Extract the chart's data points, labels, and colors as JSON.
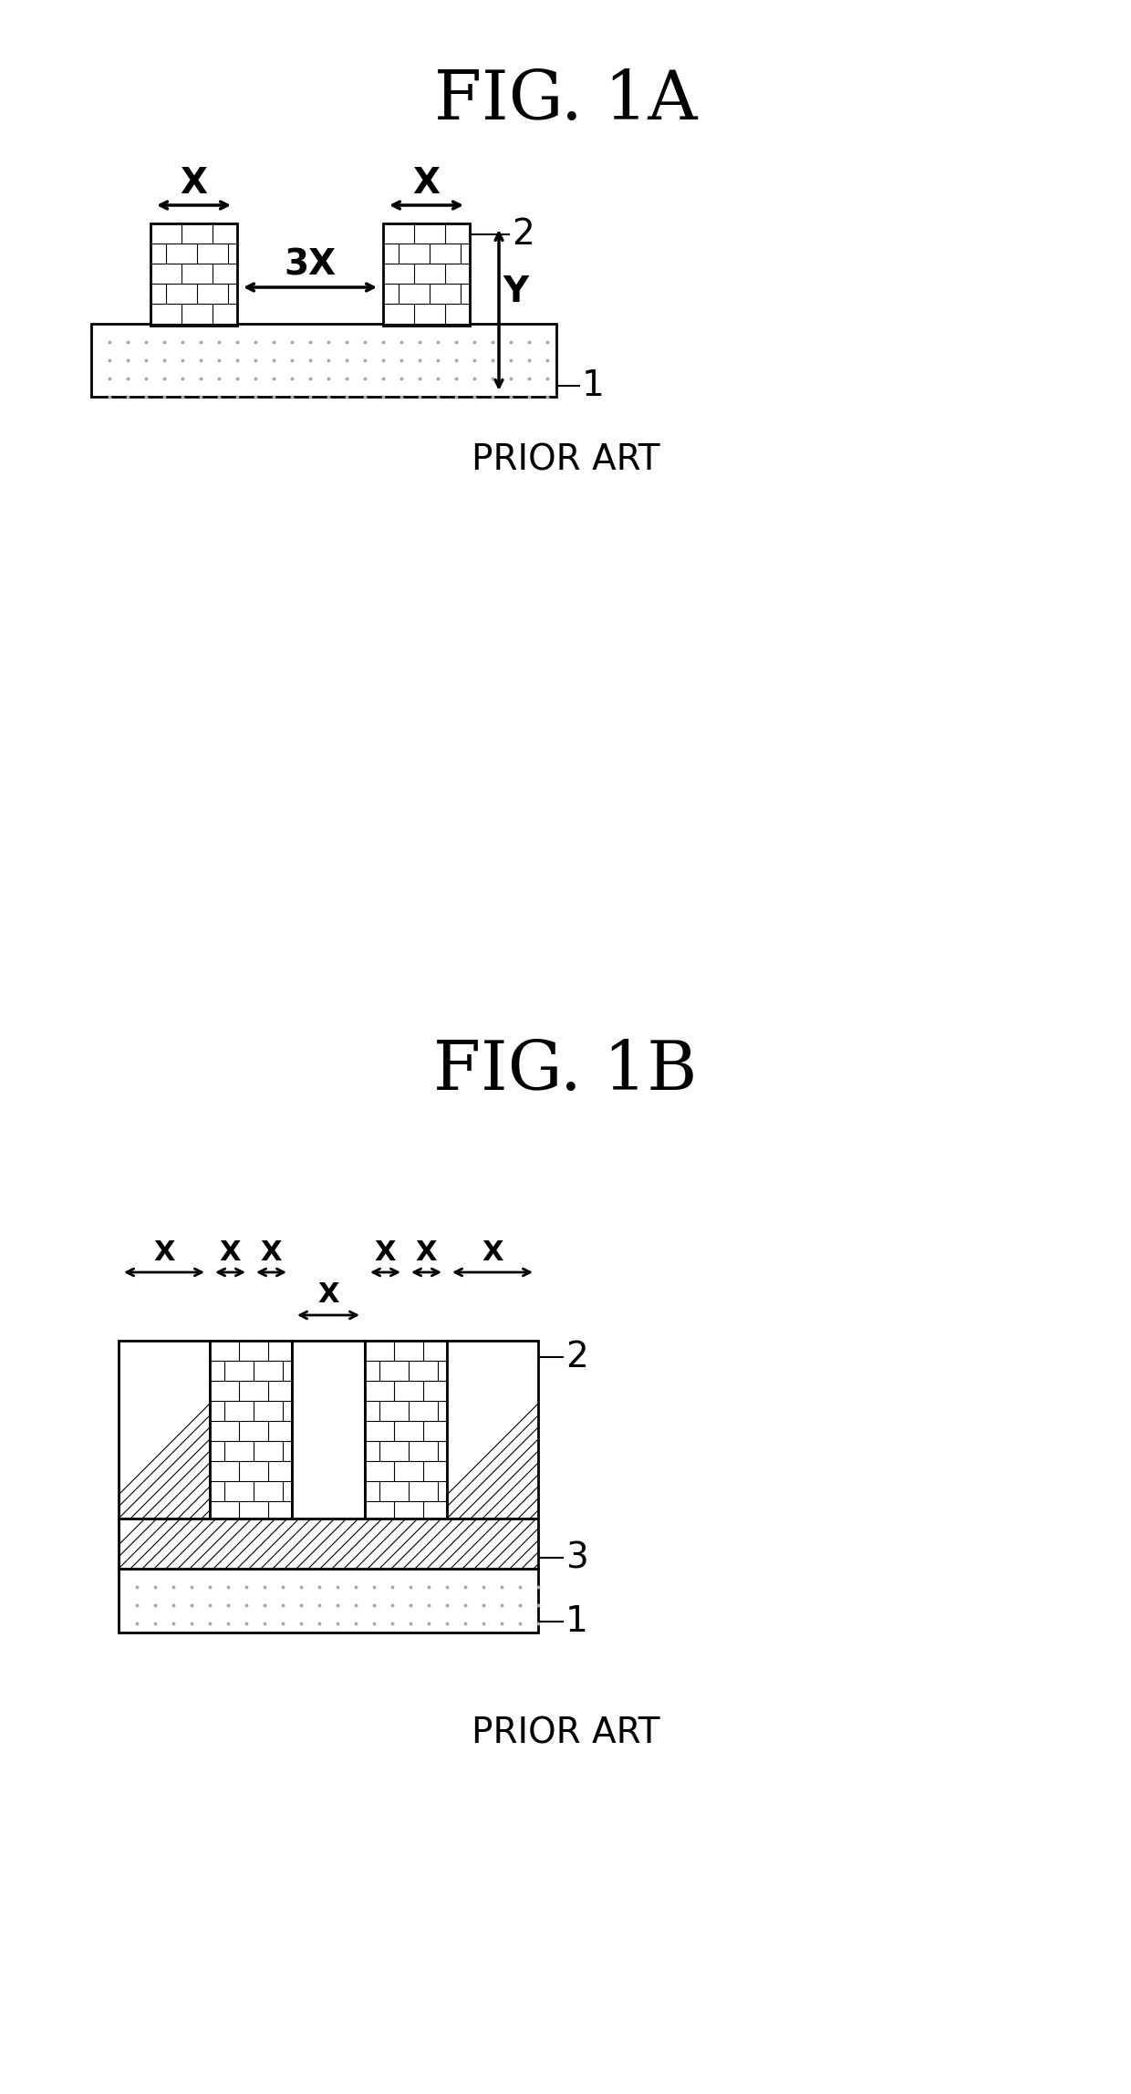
{
  "fig1a_title": "FIG. 1A",
  "fig1b_title": "FIG. 1B",
  "prior_art": "PRIOR ART",
  "background_color": "#ffffff",
  "line_color": "#000000"
}
